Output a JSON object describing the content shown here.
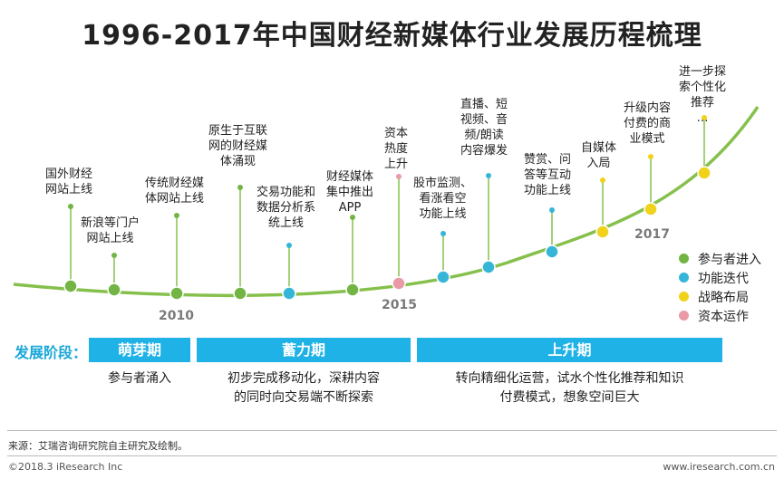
{
  "title": "1996-2017年中国财经新媒体行业发展历程梳理",
  "years": [
    "2010",
    "2015",
    "2017"
  ],
  "colors": {
    "participant": "#72b544",
    "function": "#35b6d9",
    "strategy": "#f0d21b",
    "capital": "#e99aa6",
    "timeline": "#86c04c",
    "stage_bar": "#1fb2e6"
  },
  "events": [
    {
      "text": "国外财经\n网站上线",
      "category": "participant"
    },
    {
      "text": "新浪等门户\n网站上线",
      "category": "participant"
    },
    {
      "text": "传统财经媒\n体网站上线",
      "category": "participant"
    },
    {
      "text": "原生于互联\n网的财经媒\n体涌现",
      "category": "participant"
    },
    {
      "text": "交易功能和\n数据分析系\n统上线",
      "category": "function"
    },
    {
      "text": "财经媒体\n集中推出\nAPP",
      "category": "participant"
    },
    {
      "text": "资本\n热度\n上升",
      "category": "capital"
    },
    {
      "text": "股市监测、\n看涨看空\n功能上线",
      "category": "function"
    },
    {
      "text": "直播、短\n视频、音\n频/朗读\n内容爆发",
      "category": "function"
    },
    {
      "text": "赞赏、问\n答等互动\n功能上线",
      "category": "function"
    },
    {
      "text": "自媒体\n入局",
      "category": "strategy"
    },
    {
      "text": "升级内容\n付费的商\n业模式",
      "category": "strategy"
    },
    {
      "text": "进一步探\n索个性化\n推荐\n…",
      "category": "strategy"
    }
  ],
  "legend": [
    {
      "label": "参与者进入",
      "category": "participant"
    },
    {
      "label": "功能迭代",
      "category": "function"
    },
    {
      "label": "战略布局",
      "category": "strategy"
    },
    {
      "label": "资本运作",
      "category": "capital"
    }
  ],
  "stages": {
    "label": "发展阶段：",
    "items": [
      {
        "name": "萌芽期",
        "desc": "参与者涌入"
      },
      {
        "name": "蓄力期",
        "desc": "初步完成移动化，深耕内容\n的同时向交易端不断探索"
      },
      {
        "name": "上升期",
        "desc": "转向精细化运营，试水个性化推荐和知识\n付费模式，想象空间巨大"
      }
    ]
  },
  "source": "来源：艾瑞咨询研究院自主研究及绘制。",
  "footer": {
    "left": "©2018.3 iResearch Inc",
    "right": "www.iresearch.com.cn"
  }
}
